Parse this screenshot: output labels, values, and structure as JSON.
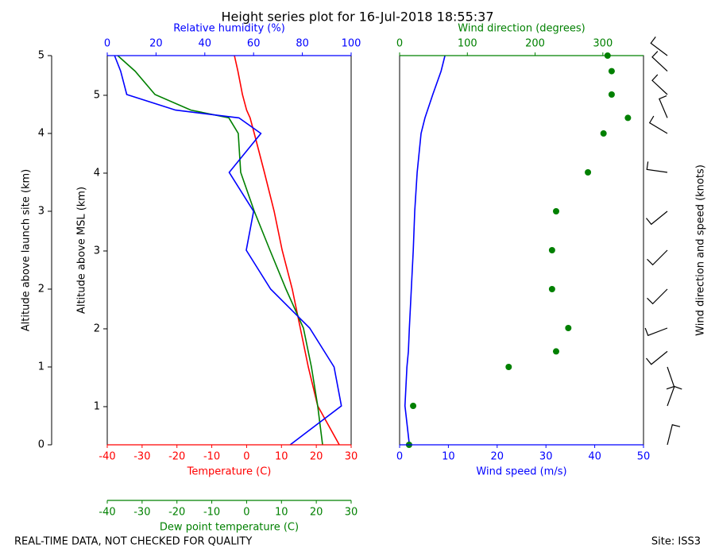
{
  "title": "Height series plot for 16-Jul-2018 18:55:37",
  "note": "REAL-TIME DATA, NOT CHECKED FOR QUALITY",
  "site": "Site: ISS3",
  "chart_data": [
    {
      "type": "line",
      "ylabel": "Altitude above launch site (km)",
      "ylim": [
        0,
        5
      ],
      "yticks": [
        0,
        1,
        2,
        3,
        4,
        5
      ],
      "y2label": "Altitude above MSL (km)",
      "y2lim": [
        0.51,
        5.51
      ],
      "y2ticks": [
        1,
        2,
        3,
        4,
        5
      ],
      "xlabel": "Temperature (C)",
      "xlim": [
        -40,
        30
      ],
      "xticks": [
        -40,
        -30,
        -20,
        -10,
        0,
        10,
        20,
        30
      ],
      "x2label": "Relative humidity (%)",
      "x2lim": [
        0,
        100
      ],
      "x2ticks": [
        0,
        20,
        40,
        60,
        80,
        100
      ],
      "x3label": "Dew point temperature (C)",
      "x3lim": [
        -40,
        30
      ],
      "x3ticks": [
        -40,
        -30,
        -20,
        -10,
        0,
        10,
        20,
        30
      ],
      "y": [
        0,
        0.5,
        1,
        1.5,
        2,
        2.5,
        3,
        3.5,
        4,
        4.2,
        4.3,
        4.5,
        4.8,
        5
      ],
      "series": [
        {
          "color": "#ff0000",
          "axis": "x",
          "values": [
            26.6,
            20.4,
            17.7,
            15.4,
            13.1,
            10.2,
            7.9,
            5.1,
            2.2,
            1,
            0,
            -1.2,
            -2.5,
            -3.5
          ]
        },
        {
          "color": "#008000",
          "axis": "x3",
          "values": [
            21.8,
            20.4,
            18.6,
            16.3,
            11.3,
            6.7,
            2.2,
            -1.7,
            -2.4,
            -5.1,
            -16,
            -26.3,
            -32,
            -37
          ]
        },
        {
          "color": "#0000ff",
          "axis": "x2",
          "values": [
            75,
            96,
            93,
            83,
            67,
            57,
            60,
            50,
            63,
            54,
            28,
            8,
            5.5,
            3
          ]
        }
      ]
    },
    {
      "type": "line",
      "ylim": [
        0,
        5
      ],
      "xlabel": "Wind speed (m/s)",
      "xlim": [
        0,
        50
      ],
      "xticks": [
        0,
        10,
        20,
        30,
        40,
        50
      ],
      "x2label": "Wind direction (degrees)",
      "x2lim": [
        0,
        360
      ],
      "x2ticks": [
        0,
        100,
        200,
        300
      ],
      "barb_label": "Wind direction and speed (knots)",
      "y": [
        0,
        0.5,
        1,
        1.2,
        1.5,
        2,
        2.5,
        3,
        3.5,
        4,
        4.2,
        4.5,
        4.8,
        5
      ],
      "series": [
        {
          "color": "#0000ff",
          "axis": "x",
          "style": "line",
          "values": [
            2,
            1.1,
            1.5,
            1.8,
            2,
            2.4,
            2.8,
            3.1,
            3.6,
            4.4,
            5.2,
            6.8,
            8.5,
            9.3
          ]
        },
        {
          "color": "#008000",
          "axis": "x2",
          "style": "dots",
          "values": [
            14,
            20,
            161,
            231,
            249,
            225,
            225,
            231,
            278,
            301,
            337,
            313,
            313,
            307
          ]
        }
      ]
    }
  ]
}
